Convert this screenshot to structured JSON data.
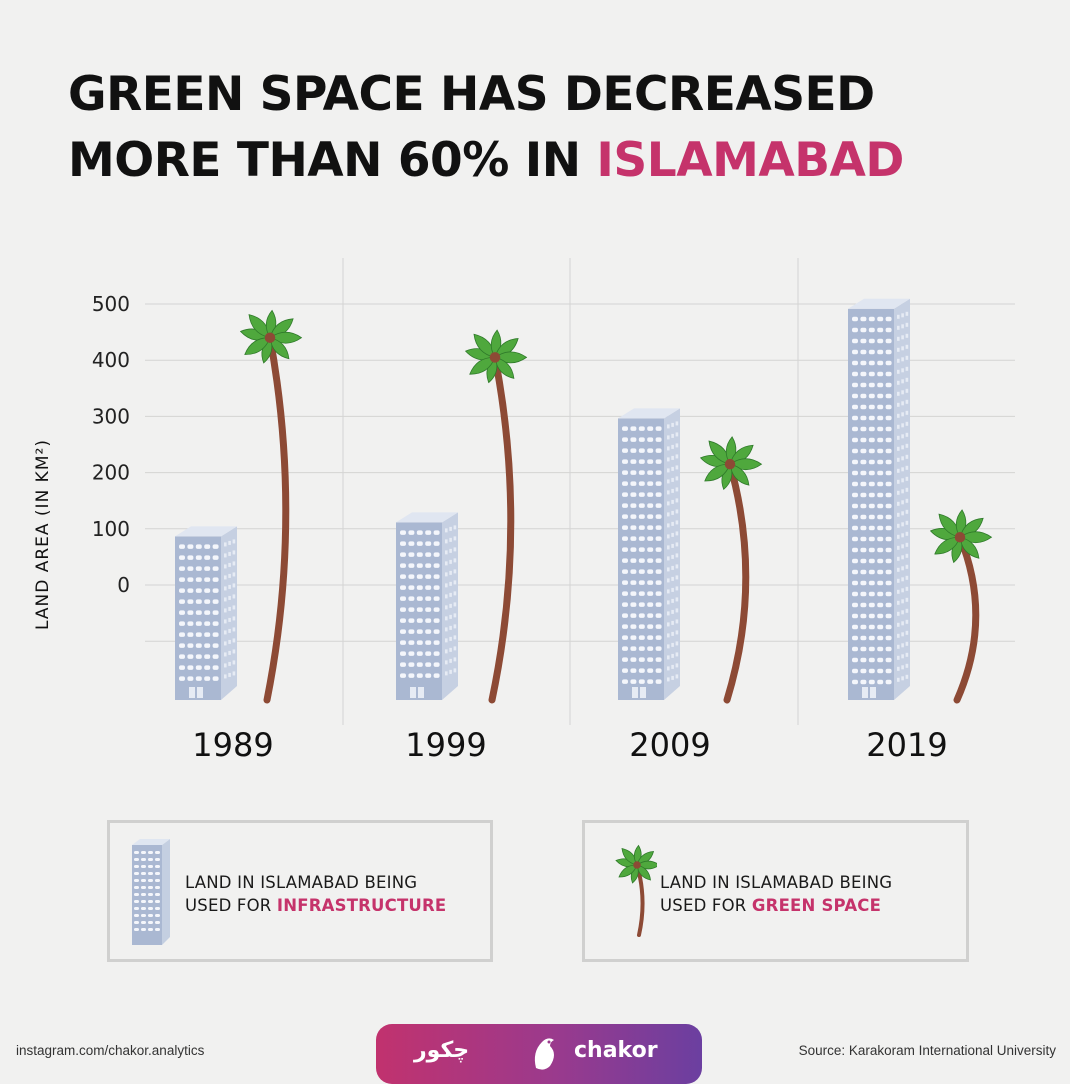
{
  "title": {
    "line1": "GREEN SPACE HAS DECREASED",
    "line2_prefix": "MORE THAN 60% IN",
    "line2_accent": "ISLAMABAD"
  },
  "colors": {
    "accent": "#c5336b",
    "building": "#aab8d2",
    "building_window": "#f4f6fb",
    "palm_trunk": "#8d4a35",
    "palm_leaf": "#4fa83d",
    "grid": "#d4d4d3",
    "logo_gradient_start": "#c1326e",
    "logo_gradient_end": "#6b3fa0"
  },
  "chart_data": {
    "type": "bar",
    "title": "GREEN SPACE HAS DECREASED MORE THAN 60% IN ISLAMABAD",
    "ylabel": "LAND  AREA  (IN KM²)",
    "xlabel": "",
    "yticks": [
      0,
      100,
      200,
      300,
      400,
      500
    ],
    "ylim": [
      -200,
      500
    ],
    "grid": true,
    "categories": [
      "1989",
      "1999",
      "2009",
      "2019"
    ],
    "series": [
      {
        "name": "LAND IN ISLAMABAD BEING USED FOR INFRASTRUCTURE",
        "icon": "building-icon",
        "values": [
          90,
          115,
          300,
          495
        ]
      },
      {
        "name": "LAND IN ISLAMABAD BEING USED FOR GREEN SPACE",
        "icon": "palm-tree-icon",
        "values": [
          440,
          405,
          215,
          85
        ]
      }
    ]
  },
  "legend": {
    "items": [
      {
        "text": "LAND IN ISLAMABAD BEING",
        "prefix": "USED FOR",
        "highlight": "INFRASTRUCTURE",
        "icon": "building-icon"
      },
      {
        "text": "LAND IN ISLAMABAD BEING",
        "prefix": "USED FOR",
        "highlight": "GREEN SPACE",
        "icon": "palm-tree-icon"
      }
    ]
  },
  "footer": {
    "left": "instagram.com/chakor.analytics",
    "right": "Source: Karakoram International University",
    "logo_urdu": "چکور",
    "logo_name": "chakor"
  }
}
